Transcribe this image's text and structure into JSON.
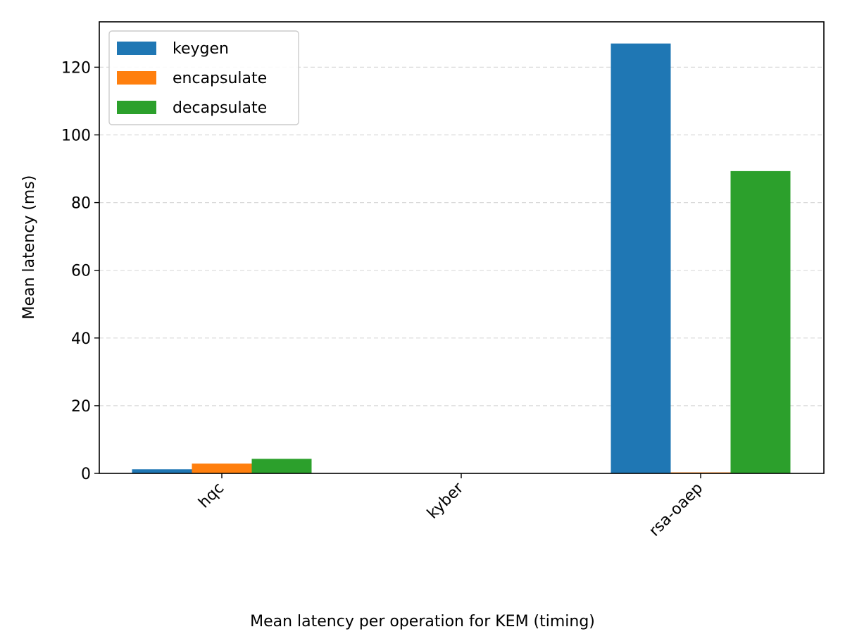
{
  "chart_data": {
    "type": "bar",
    "categories": [
      "hqc",
      "kyber",
      "rsa-oaep"
    ],
    "series": [
      {
        "name": "keygen",
        "color": "#1f77b4",
        "values": [
          1.2,
          0.0,
          127.0
        ]
      },
      {
        "name": "encapsulate",
        "color": "#ff7f0e",
        "values": [
          2.9,
          0.0,
          0.3
        ]
      },
      {
        "name": "decapsulate",
        "color": "#2ca02c",
        "values": [
          4.3,
          0.0,
          89.3
        ]
      }
    ],
    "title": "",
    "xlabel": "Mean latency per operation for KEM (timing)",
    "ylabel": "Mean latency (ms)",
    "ylim": [
      0,
      133.4
    ],
    "yticks": [
      0,
      20,
      40,
      60,
      80,
      100,
      120
    ],
    "grid": "y-dashed",
    "legend_position": "top-left"
  }
}
